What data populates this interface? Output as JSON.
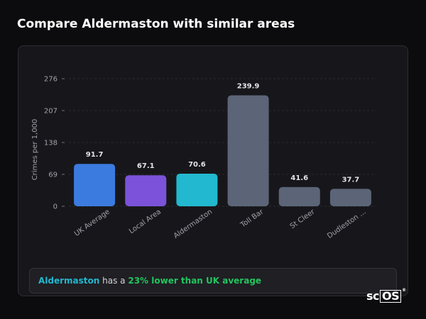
{
  "page": {
    "title": "Compare Aldermaston with similar areas"
  },
  "chart_data": {
    "type": "bar",
    "ylabel": "Crimes per 1,000",
    "xlabel": "",
    "ylim": [
      0,
      276
    ],
    "yticks": [
      0,
      69,
      138,
      207,
      276
    ],
    "grid": true,
    "categories": [
      "UK Average",
      "Local Area",
      "Aldermaston",
      "Toll Bar",
      "St Cleer",
      "Dudleston ..."
    ],
    "values": [
      91.7,
      67.1,
      70.6,
      239.9,
      41.6,
      37.7
    ],
    "value_labels": [
      "91.7",
      "67.1",
      "70.6",
      "239.9",
      "41.6",
      "37.7"
    ],
    "colors": [
      "#3b7be0",
      "#7b52d9",
      "#22b8cf",
      "#5b6577",
      "#5b6577",
      "#5b6577"
    ]
  },
  "summary": {
    "area": "Aldermaston",
    "connector": " has a ",
    "comparison": "23% lower than UK average"
  },
  "logo": {
    "prefix": "sc",
    "boxed": "OS",
    "mark": "®"
  }
}
